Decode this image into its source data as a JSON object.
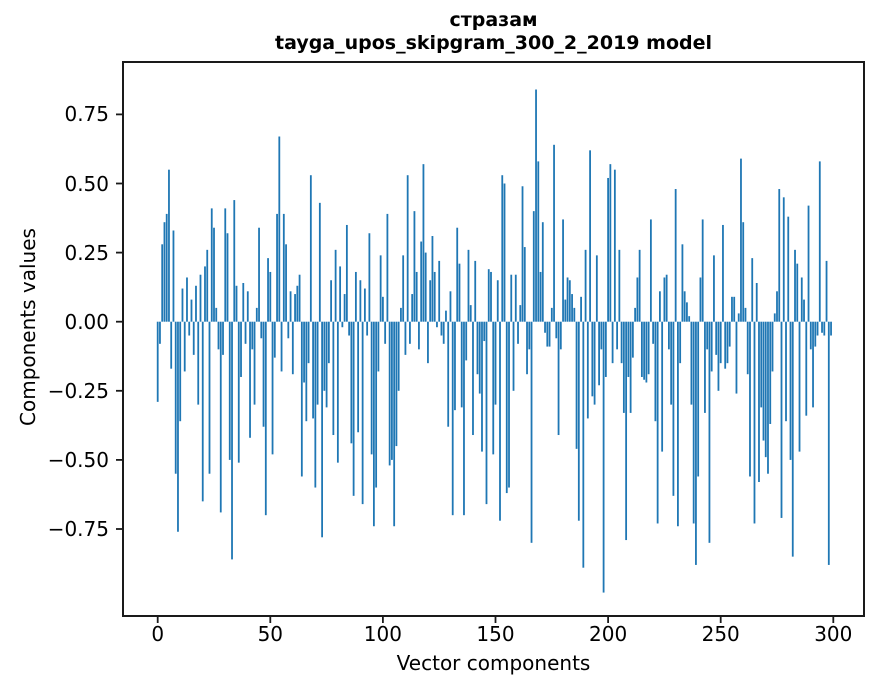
{
  "title": {
    "line1": "стразам",
    "line2": "tayga_upos_skipgram_300_2_2019 model"
  },
  "axes": {
    "xlabel": "Vector components",
    "ylabel": "Components values",
    "x_tick_values": [
      0,
      50,
      100,
      150,
      200,
      250,
      300
    ],
    "x_tick_labels": [
      "0",
      "50",
      "100",
      "150",
      "200",
      "250",
      "300"
    ],
    "y_tick_values": [
      0.75,
      0.5,
      0.25,
      0.0,
      -0.25,
      -0.5,
      -0.75
    ],
    "y_tick_labels": [
      "0.75",
      "0.50",
      "0.25",
      "0.00",
      "−0.25",
      "−0.50",
      "−0.75"
    ]
  },
  "colors": {
    "bar": "#1f77b4",
    "spine": "#1a1a1a",
    "text": "#000000",
    "background": "#ffffff"
  },
  "chart_data": {
    "type": "bar",
    "title": "стразам — tayga_upos_skipgram_300_2_2019 model",
    "xlabel": "Vector components",
    "ylabel": "Components values",
    "n_components": 300,
    "x_range": [
      0,
      299
    ],
    "xlim": [
      -15,
      314
    ],
    "ylim": [
      -1.07,
      0.93
    ],
    "grid": false,
    "legend": "none",
    "bar_color": "#1f77b4",
    "values": [
      -0.29,
      -0.08,
      0.28,
      0.36,
      0.39,
      0.55,
      -0.17,
      0.33,
      -0.55,
      -0.76,
      -0.36,
      0.12,
      -0.18,
      0.16,
      -0.05,
      0.08,
      -0.12,
      0.13,
      -0.3,
      0.17,
      -0.65,
      0.2,
      0.26,
      -0.55,
      0.41,
      0.34,
      0.05,
      -0.1,
      -0.69,
      -0.12,
      0.41,
      0.32,
      -0.5,
      -0.86,
      0.44,
      0.13,
      -0.51,
      -0.2,
      0.14,
      -0.08,
      0.11,
      -0.42,
      -0.1,
      -0.3,
      0.05,
      0.34,
      -0.06,
      -0.38,
      -0.7,
      0.23,
      0.18,
      -0.48,
      -0.13,
      0.39,
      0.67,
      -0.18,
      0.39,
      0.28,
      -0.06,
      0.11,
      -0.19,
      0.1,
      0.13,
      0.17,
      -0.56,
      -0.22,
      -0.36,
      -0.15,
      0.53,
      -0.35,
      -0.6,
      -0.3,
      0.43,
      -0.78,
      -0.25,
      -0.31,
      -0.15,
      0.15,
      -0.41,
      0.26,
      -0.51,
      0.2,
      -0.02,
      0.1,
      0.35,
      -0.05,
      -0.44,
      -0.63,
      0.18,
      -0.4,
      0.15,
      -0.66,
      0.12,
      -0.05,
      0.32,
      -0.48,
      -0.74,
      -0.6,
      -0.18,
      0.24,
      0.09,
      -0.08,
      0.39,
      -0.52,
      -0.5,
      -0.74,
      -0.45,
      -0.25,
      0.05,
      0.24,
      -0.12,
      0.53,
      -0.08,
      0.1,
      0.4,
      0.18,
      -0.1,
      0.29,
      0.57,
      0.25,
      -0.15,
      0.15,
      0.31,
      0.18,
      -0.02,
      0.22,
      -0.05,
      -0.08,
      0.04,
      -0.38,
      0.11,
      -0.7,
      -0.32,
      0.34,
      0.21,
      -0.31,
      -0.7,
      -0.14,
      0.26,
      0.06,
      -0.41,
      0.22,
      -0.19,
      -0.26,
      -0.47,
      -0.07,
      -0.66,
      0.19,
      0.18,
      -0.48,
      -0.3,
      0.15,
      -0.72,
      0.53,
      0.5,
      -0.62,
      -0.6,
      0.17,
      -0.25,
      0.17,
      -0.08,
      0.06,
      0.49,
      0.27,
      -0.19,
      -0.1,
      -0.8,
      0.4,
      0.84,
      0.58,
      0.18,
      0.36,
      -0.04,
      -0.09,
      -0.09,
      0.05,
      0.64,
      -0.06,
      -0.41,
      -0.1,
      0.37,
      0.08,
      0.16,
      0.15,
      0.1,
      0.05,
      -0.46,
      -0.72,
      0.09,
      -0.89,
      0.26,
      -0.35,
      0.62,
      -0.27,
      -0.3,
      0.24,
      -0.23,
      -0.1,
      -0.98,
      -0.2,
      0.52,
      0.57,
      -0.15,
      0.55,
      -0.1,
      0.26,
      -0.15,
      -0.33,
      -0.79,
      -0.2,
      -0.33,
      -0.13,
      0.05,
      0.16,
      0.26,
      -0.2,
      -0.21,
      -0.22,
      -0.19,
      0.37,
      -0.08,
      -0.36,
      -0.73,
      0.11,
      -0.47,
      0.16,
      0.17,
      -0.1,
      -0.3,
      -0.63,
      0.48,
      -0.74,
      -0.15,
      0.28,
      0.11,
      0.07,
      0.02,
      -0.3,
      -0.73,
      -0.88,
      -0.56,
      0.16,
      0.37,
      -0.33,
      -0.1,
      -0.8,
      -0.18,
      0.24,
      -0.12,
      -0.25,
      -0.15,
      0.35,
      -0.17,
      -0.15,
      -0.09,
      0.09,
      0.09,
      -0.26,
      0.03,
      0.59,
      0.36,
      0.05,
      -0.19,
      -0.56,
      0.23,
      -0.73,
      0.14,
      -0.58,
      -0.31,
      -0.43,
      -0.49,
      -0.55,
      -0.37,
      -0.18,
      0.03,
      0.11,
      0.48,
      -0.71,
      0.45,
      -0.36,
      0.38,
      -0.5,
      -0.85,
      0.26,
      0.21,
      -0.47,
      0.16,
      0.08,
      -0.34,
      0.42,
      -0.1,
      -0.31,
      -0.09,
      -0.05,
      0.58,
      -0.04,
      -0.05,
      0.22,
      -0.88,
      -0.05
    ]
  }
}
